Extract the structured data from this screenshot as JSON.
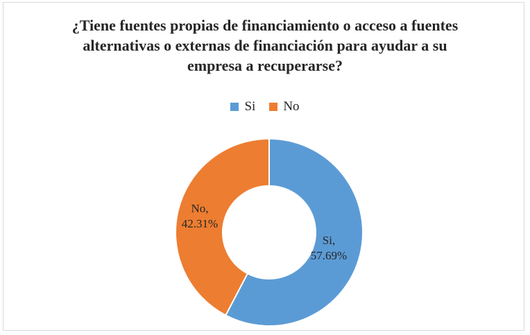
{
  "chart_data": {
    "type": "pie",
    "variant": "donut",
    "title": "¿Tiene fuentes propias de financiamiento o acceso a fuentes alternativas o externas de financiación para ayudar a su empresa a recuperarse?",
    "title_lines": [
      "¿Tiene fuentes propias de financiamiento o acceso a fuentes",
      "alternativas o externas de financiación para ayudar a su",
      "empresa a recuperarse?"
    ],
    "legend_position": "top",
    "categories": [
      "Si",
      "No"
    ],
    "values": [
      57.69,
      42.31
    ],
    "unit": "%",
    "colors": [
      "#5b9bd5",
      "#ed7d31"
    ],
    "data_labels": [
      {
        "name": "Si,",
        "value": "57.69%"
      },
      {
        "name": "No,",
        "value": "42.31%"
      }
    ]
  }
}
